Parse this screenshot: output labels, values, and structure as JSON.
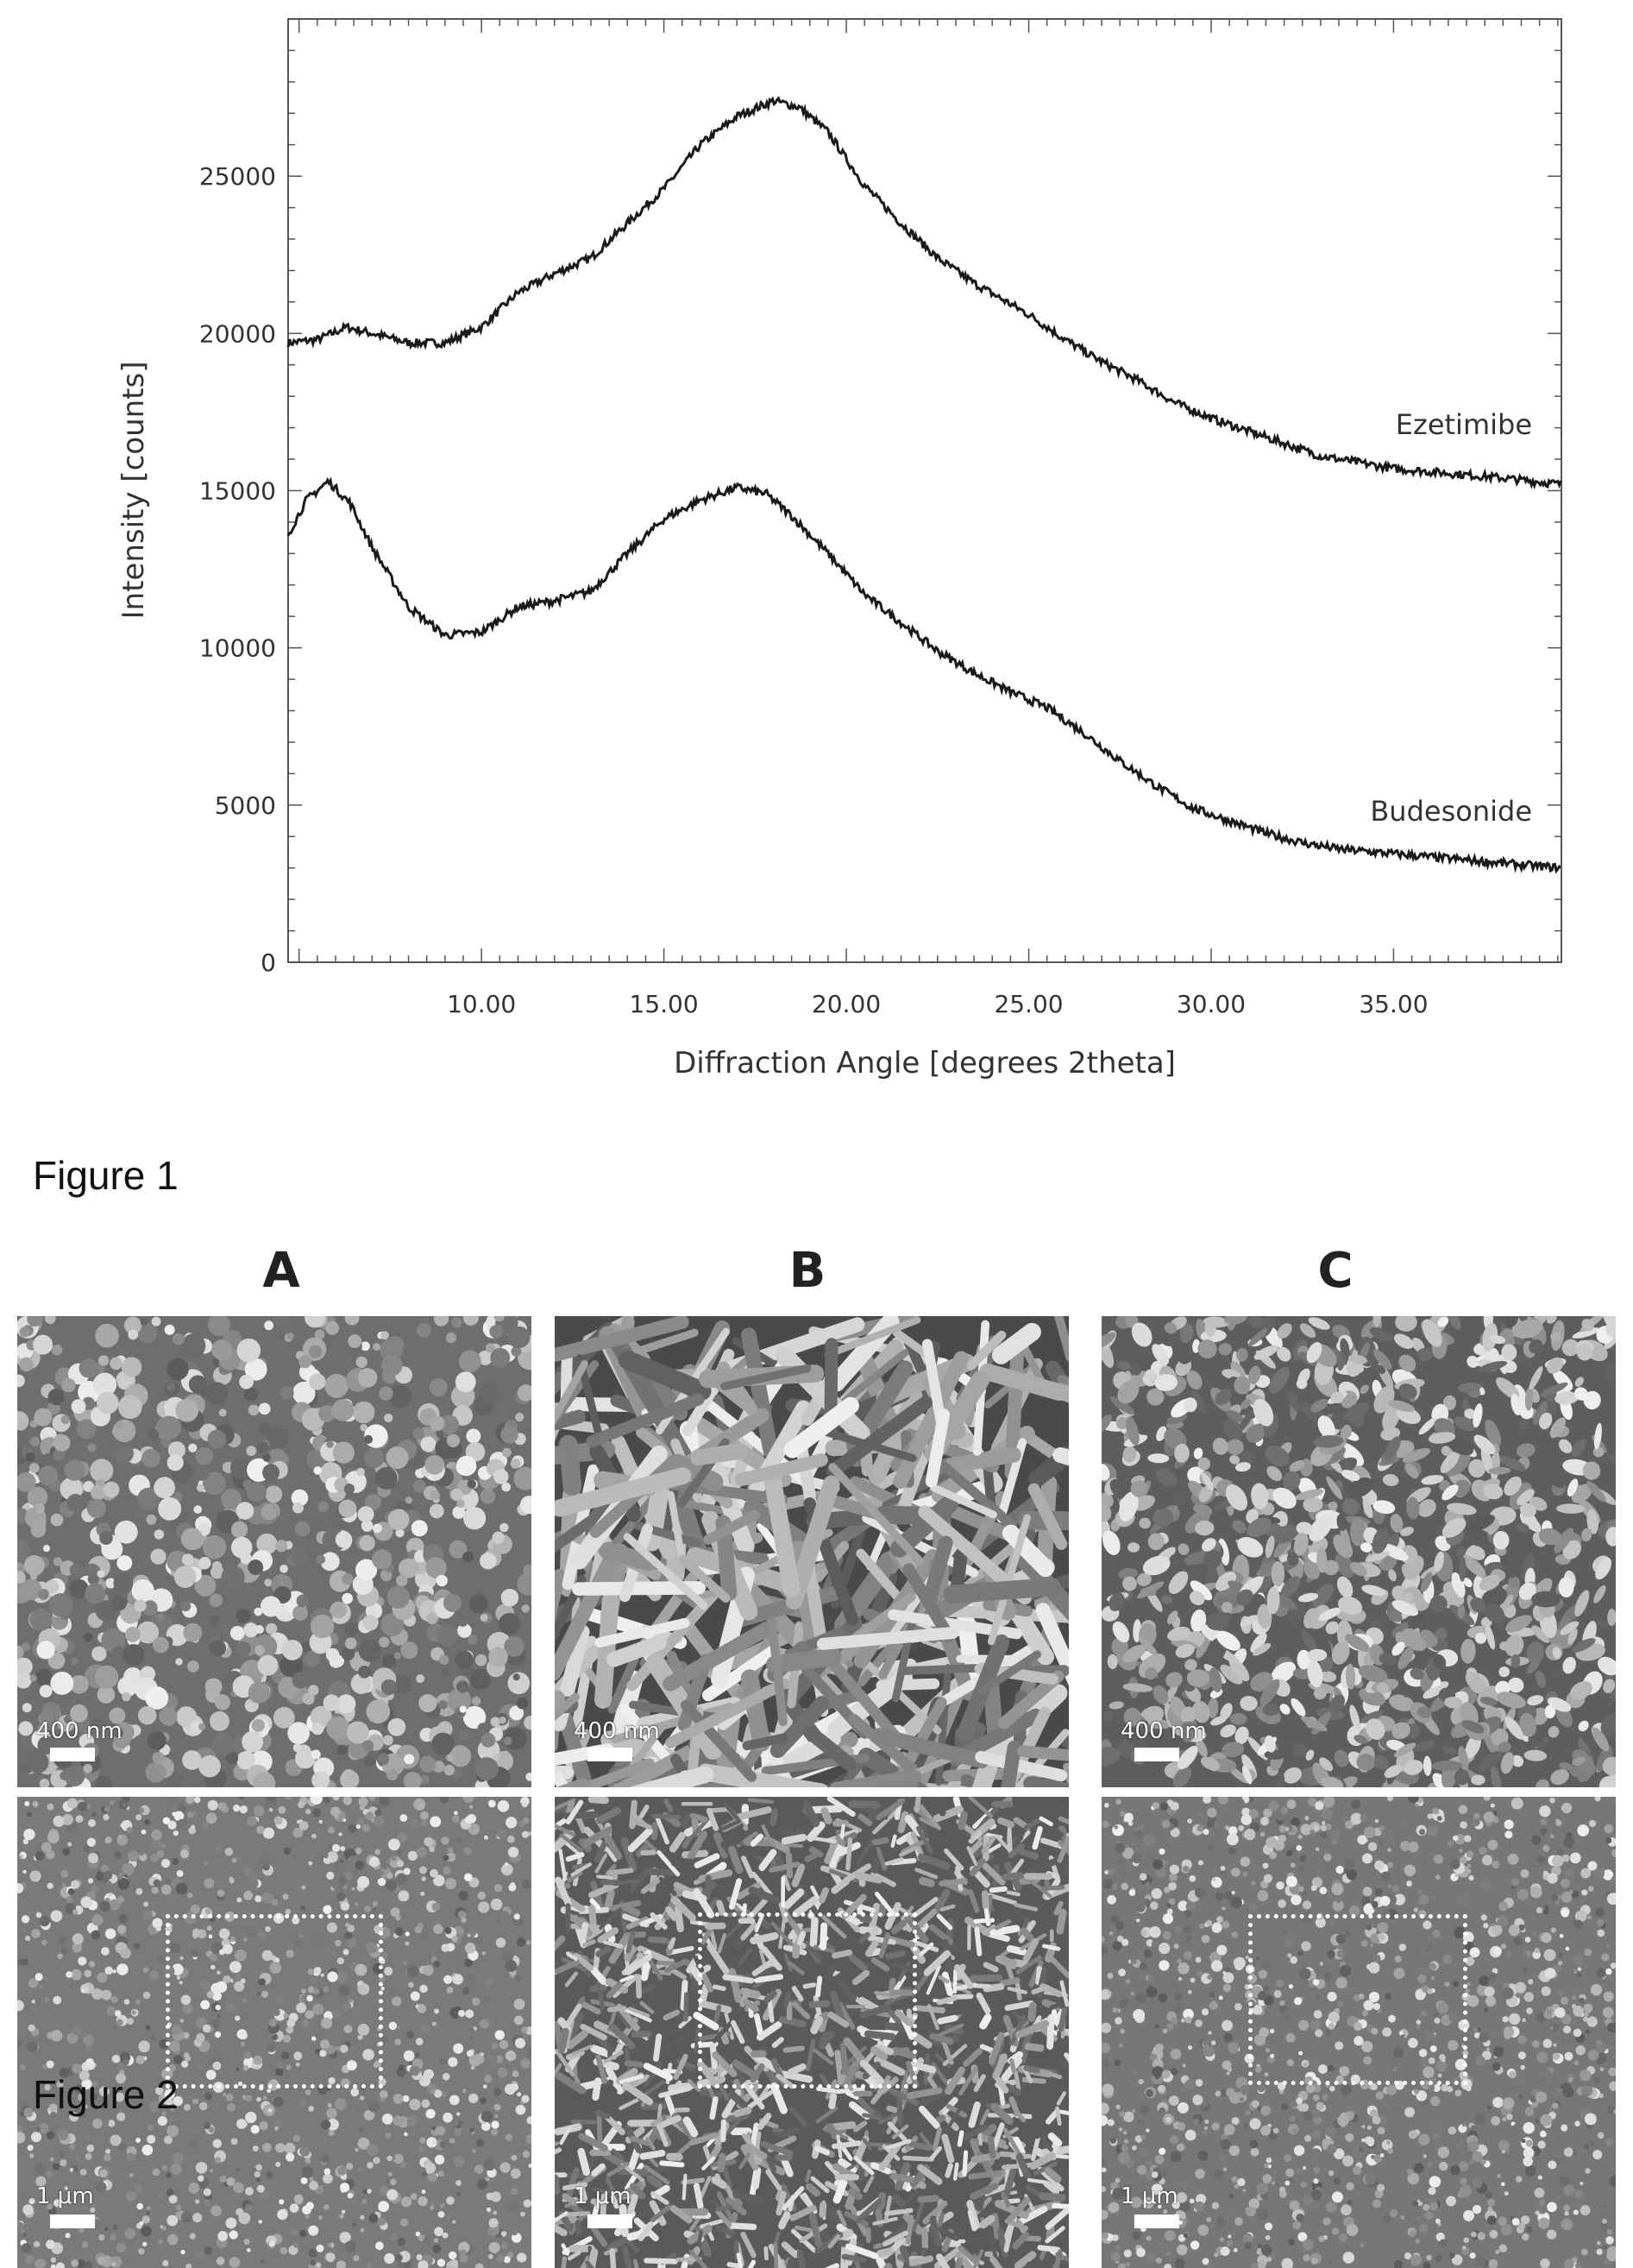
{
  "figure1": {
    "caption": "Figure 1",
    "chart_data": {
      "type": "line",
      "title": "",
      "xlabel": "Diffraction Angle [degrees 2theta]",
      "ylabel": "Intensity [counts]",
      "xlim": [
        4.7,
        39.6
      ],
      "ylim": [
        0,
        30000
      ],
      "xticks": [
        10,
        15,
        20,
        25,
        30,
        35
      ],
      "xtick_labels": [
        "10.00",
        "15.00",
        "20.00",
        "25.00",
        "30.00",
        "35.00"
      ],
      "yticks": [
        0,
        5000,
        10000,
        15000,
        20000,
        25000
      ],
      "ytick_labels": [
        "0",
        "5000",
        "10000",
        "15000",
        "20000",
        "25000"
      ],
      "grid": false,
      "series": [
        {
          "name": "Ezetimibe",
          "color": "#1a1a1a",
          "x": [
            4.7,
            5.5,
            6.3,
            7.0,
            8.0,
            9.0,
            10.0,
            11.0,
            12.0,
            13.0,
            14.0,
            15.0,
            16.0,
            17.0,
            18.0,
            18.7,
            19.5,
            20.5,
            21.5,
            22.5,
            23.5,
            25.0,
            26.0,
            27.0,
            28.0,
            29.0,
            30.0,
            31.0,
            32.0,
            33.0,
            34.0,
            35.0,
            36.0,
            37.0,
            38.0,
            39.6
          ],
          "y": [
            19700,
            19800,
            20200,
            20000,
            19700,
            19700,
            20200,
            21300,
            21900,
            22400,
            23500,
            24600,
            26000,
            26900,
            27400,
            27200,
            26400,
            24700,
            23500,
            22400,
            21600,
            20600,
            19800,
            19100,
            18500,
            17800,
            17300,
            16900,
            16500,
            16100,
            15900,
            15700,
            15600,
            15500,
            15400,
            15200
          ]
        },
        {
          "name": "Budesonide",
          "color": "#1a1a1a",
          "x": [
            4.7,
            5.2,
            5.8,
            6.4,
            7.0,
            8.0,
            9.0,
            10.0,
            11.0,
            12.0,
            13.0,
            14.0,
            15.0,
            16.0,
            17.0,
            17.8,
            18.5,
            19.5,
            20.5,
            21.5,
            22.5,
            23.5,
            24.5,
            25.5,
            26.5,
            27.5,
            28.5,
            29.5,
            30.5,
            31.5,
            32.5,
            33.5,
            34.5,
            35.5,
            36.5,
            37.5,
            38.5,
            39.6
          ],
          "y": [
            13600,
            14700,
            15300,
            14600,
            13200,
            11300,
            10400,
            10500,
            11300,
            11500,
            11800,
            13000,
            14100,
            14700,
            15100,
            14900,
            14200,
            13000,
            11700,
            10800,
            9900,
            9200,
            8600,
            8100,
            7300,
            6400,
            5600,
            4900,
            4500,
            4100,
            3800,
            3600,
            3500,
            3400,
            3300,
            3200,
            3100,
            3000
          ]
        }
      ]
    }
  },
  "figure2": {
    "caption": "Figure 2",
    "panels": [
      {
        "letter": "A",
        "top_scale": "400 nm",
        "bottom_scale": "1 μm"
      },
      {
        "letter": "B",
        "top_scale": "400 nm",
        "bottom_scale": "1 μm"
      },
      {
        "letter": "C",
        "top_scale": "400 nm",
        "bottom_scale": "1 μm"
      }
    ]
  }
}
